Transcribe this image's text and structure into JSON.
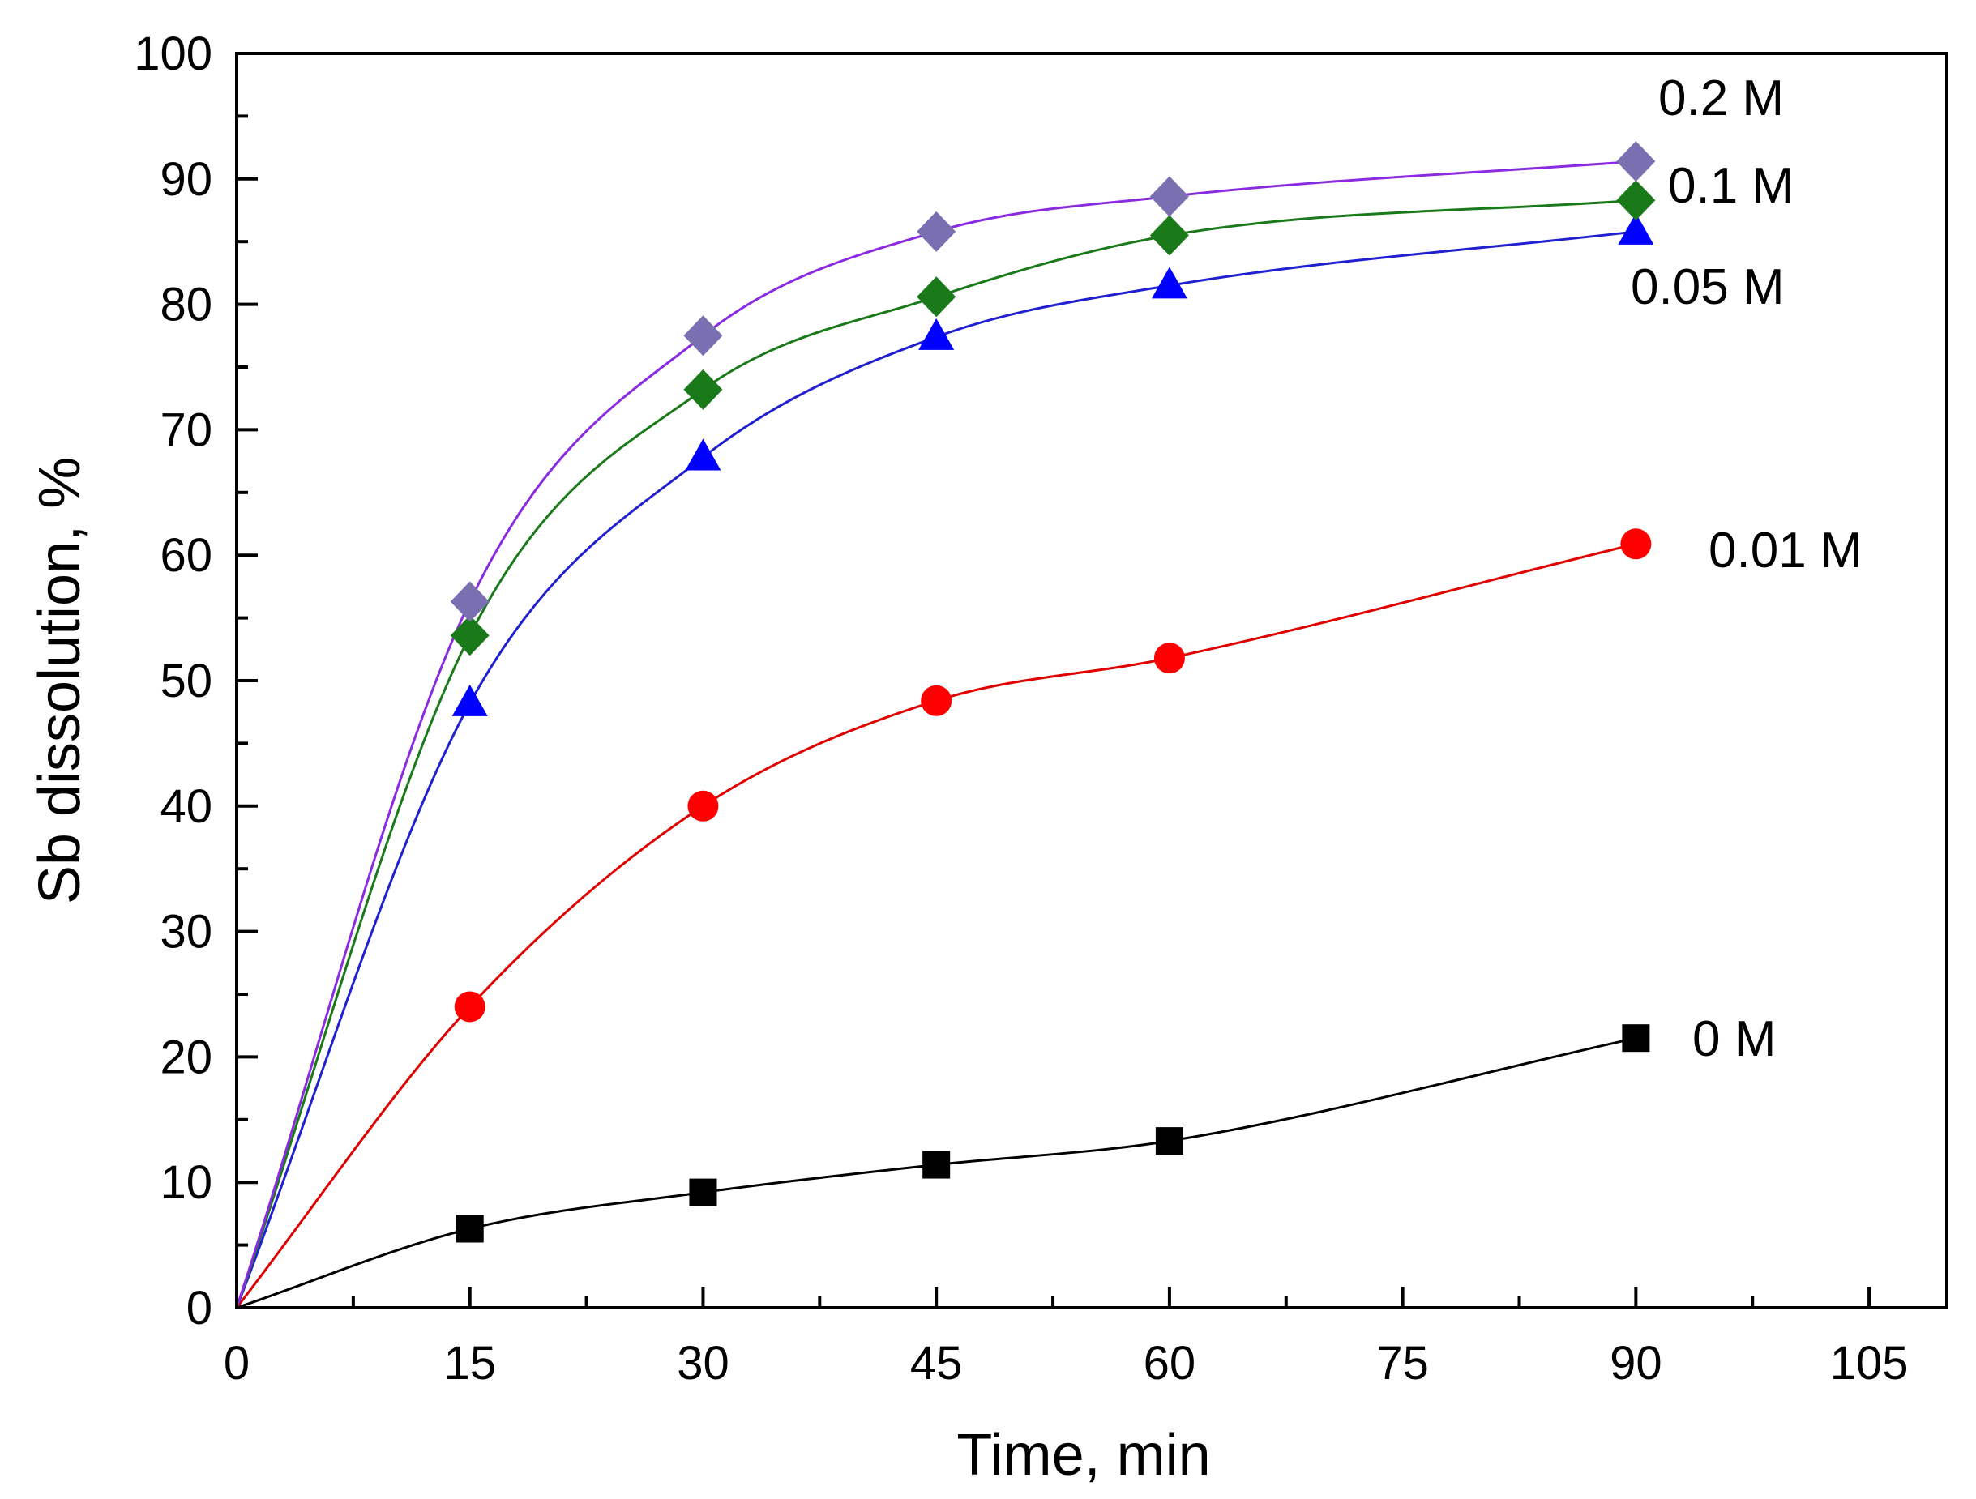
{
  "chart_data": {
    "type": "scatter",
    "title": "",
    "xlabel": "Time, min",
    "ylabel": "Sb dissolution, %",
    "xlim": [
      0,
      110
    ],
    "ylim": [
      0,
      100
    ],
    "xticks": [
      0,
      15,
      30,
      45,
      60,
      75,
      90,
      105
    ],
    "yticks": [
      0,
      10,
      20,
      30,
      40,
      50,
      60,
      70,
      80,
      90,
      100
    ],
    "xtick_labels": [
      "0",
      "15",
      "30",
      "45",
      "60",
      "75",
      "90",
      "105"
    ],
    "ytick_labels": [
      "0",
      "10",
      "20",
      "30",
      "40",
      "50",
      "60",
      "70",
      "80",
      "90",
      "100"
    ],
    "grid": false,
    "x": [
      0,
      15,
      30,
      45,
      60,
      90
    ],
    "series": [
      {
        "name": "0 M",
        "marker": "square",
        "color": "#000000",
        "values": [
          0,
          6.3,
          9.2,
          11.4,
          13.3,
          21.5
        ]
      },
      {
        "name": "0.01 M",
        "marker": "circle",
        "color": "#ff0000",
        "values": [
          0,
          24.0,
          40.0,
          48.4,
          51.8,
          60.9
        ]
      },
      {
        "name": "0.05 M",
        "marker": "triangle",
        "color": "#0000ff",
        "values": [
          0,
          48.2,
          67.8,
          77.4,
          81.5,
          85.8
        ]
      },
      {
        "name": "0.1 M",
        "marker": "diamond",
        "color": "#1a7a1a",
        "values": [
          0,
          53.6,
          73.2,
          80.6,
          85.5,
          88.3
        ]
      },
      {
        "name": "0.2 M",
        "marker": "diamond",
        "color": "#7a6fb0",
        "values": [
          0,
          56.3,
          77.5,
          85.8,
          88.6,
          91.4
        ]
      }
    ],
    "fit_colors": {
      "0 M": "#000000",
      "0.01 M": "#e00000",
      "0.05 M": "#2020d0",
      "0.1 M": "#1a7a1a",
      "0.2 M": "#8a2be2"
    }
  }
}
